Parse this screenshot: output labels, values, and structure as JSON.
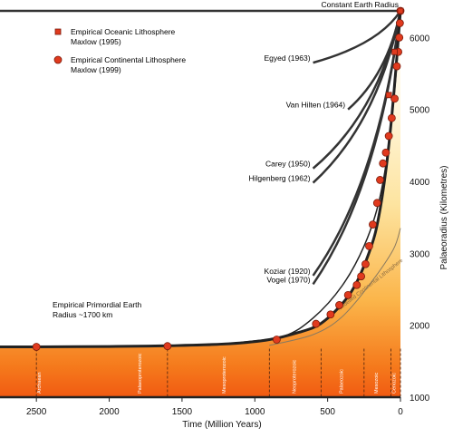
{
  "chart_data": {
    "type": "line",
    "title": "",
    "xlabel": "Time (Million Years)",
    "ylabel": "Palaeoradius (Kilometres)",
    "xlim": [
      2750,
      0
    ],
    "ylim": [
      1000,
      6370
    ],
    "x_ticks": [
      2500,
      2000,
      1500,
      1000,
      500,
      0
    ],
    "y_ticks": [
      1000,
      2000,
      3000,
      4000,
      5000,
      6000
    ],
    "top_line_label": "Constant Earth Radius",
    "primordial_label": "Empirical Primordial Earth Radius ~1700 km",
    "legend": {
      "placement": "top-left",
      "oceanic": {
        "line1": "Empirical Oceanic Lithosphere",
        "line2": "Maxlow (1995)",
        "marker": "square",
        "color": "#e03a1e"
      },
      "continental": {
        "line1": "Empirical Continental Lithosphere",
        "line2": "Maxlow (1999)",
        "marker": "circle",
        "color": "#e03a1e"
      }
    },
    "model_curves": [
      {
        "label": "Egyed (1963)",
        "start": [
          600,
          5650
        ],
        "end": [
          0,
          6370
        ]
      },
      {
        "label": "Van Hilten (1964)",
        "start": [
          360,
          5000
        ],
        "end": [
          0,
          6370
        ]
      },
      {
        "label": "Carey (1950)",
        "start": [
          600,
          4180
        ],
        "end": [
          0,
          6370
        ]
      },
      {
        "label": "Hilgenberg (1962)",
        "start": [
          600,
          3980
        ],
        "end": [
          0,
          6370
        ]
      },
      {
        "label": "Koziar (1920)",
        "start": [
          600,
          2690
        ],
        "end": [
          0,
          6370
        ]
      },
      {
        "label": "Vogel (1970)",
        "start": [
          600,
          2570
        ],
        "end": [
          0,
          6370
        ]
      }
    ],
    "empirical_curve": [
      [
        2750,
        1700
      ],
      [
        2500,
        1700
      ],
      [
        2000,
        1705
      ],
      [
        1600,
        1715
      ],
      [
        1200,
        1740
      ],
      [
        900,
        1800
      ],
      [
        700,
        1900
      ],
      [
        550,
        2020
      ],
      [
        400,
        2300
      ],
      [
        300,
        2600
      ],
      [
        200,
        3100
      ],
      [
        150,
        3500
      ],
      [
        100,
        4150
      ],
      [
        60,
        4900
      ],
      [
        30,
        5600
      ],
      [
        0,
        6370
      ]
    ],
    "upper_envelope": [
      [
        1100,
        1760
      ],
      [
        800,
        1850
      ],
      [
        600,
        2100
      ],
      [
        400,
        2550
      ],
      [
        250,
        3100
      ],
      [
        150,
        3700
      ],
      [
        80,
        4500
      ],
      [
        30,
        5500
      ],
      [
        0,
        6370
      ]
    ],
    "continental_model_curve": {
      "label": "Modelled Continental Lithosphere",
      "points": [
        [
          900,
          1720
        ],
        [
          600,
          1870
        ],
        [
          400,
          2120
        ],
        [
          200,
          2600
        ],
        [
          50,
          3050
        ],
        [
          0,
          3350
        ]
      ]
    },
    "continental_points": [
      [
        2500,
        1700
      ],
      [
        1600,
        1710
      ],
      [
        850,
        1800
      ],
      [
        580,
        2020
      ],
      [
        480,
        2150
      ],
      [
        420,
        2280
      ],
      [
        360,
        2420
      ],
      [
        300,
        2560
      ],
      [
        270,
        2680
      ],
      [
        240,
        2850
      ],
      [
        215,
        3100
      ],
      [
        190,
        3400
      ],
      [
        160,
        3700
      ],
      [
        140,
        4020
      ],
      [
        120,
        4250
      ],
      [
        100,
        4400
      ],
      [
        80,
        4630
      ],
      [
        60,
        4880
      ],
      [
        40,
        5150
      ],
      [
        25,
        5600
      ],
      [
        15,
        5800
      ],
      [
        8,
        6000
      ],
      [
        4,
        6200
      ],
      [
        0,
        6370
      ]
    ],
    "oceanic_points": [
      [
        80,
        5200
      ],
      [
        40,
        5800
      ],
      [
        0,
        6370
      ]
    ],
    "eras": [
      {
        "name": "Archaean",
        "x": 2500
      },
      {
        "name": "Palaeoproterozoic",
        "x": 1600
      },
      {
        "name": "Mesoproterozoic",
        "x": 900
      },
      {
        "name": "Neoproterozoic",
        "x": 545
      },
      {
        "name": "Palaeozoic",
        "x": 250
      },
      {
        "name": "Mesozoic",
        "x": 65
      },
      {
        "name": "Cenozoic",
        "x": 0
      }
    ],
    "era_label_positions": [
      2470,
      1780,
      1200,
      720,
      395,
      155,
      35
    ]
  }
}
